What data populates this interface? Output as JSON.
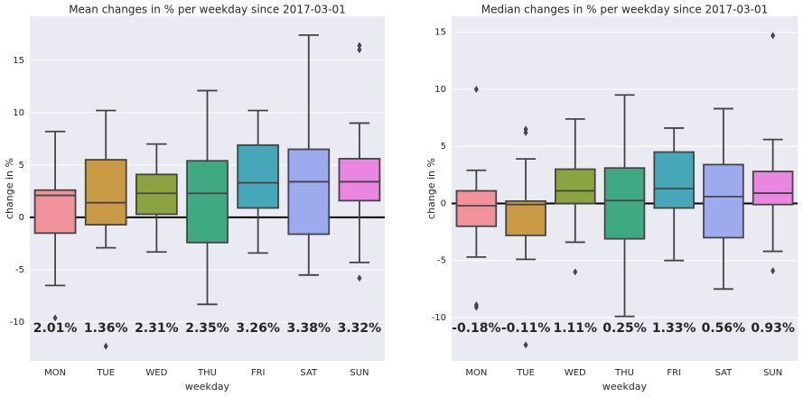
{
  "chart_data": [
    {
      "type": "box",
      "title": "Mean changes in % per weekday since 2017-03-01",
      "x_label": "weekday",
      "y_label": "change in %",
      "categories": [
        "MON",
        "TUE",
        "WED",
        "THU",
        "FRI",
        "SAT",
        "SUN"
      ],
      "colors": [
        "#f2929c",
        "#c99a44",
        "#8ba441",
        "#3faa81",
        "#45a7b8",
        "#9daaee",
        "#ea86e2"
      ],
      "whisker_low": [
        -6.5,
        -2.9,
        -3.3,
        -8.3,
        -3.4,
        -5.5,
        -4.3
      ],
      "q1": [
        -1.5,
        -0.7,
        0.3,
        -2.4,
        0.9,
        -1.6,
        1.6
      ],
      "median": [
        2.1,
        1.4,
        2.3,
        2.3,
        3.3,
        3.4,
        3.4
      ],
      "q3": [
        2.6,
        5.5,
        4.1,
        5.4,
        6.9,
        6.5,
        5.6
      ],
      "whisker_high": [
        8.2,
        10.2,
        7.0,
        12.1,
        10.2,
        17.4,
        9.0
      ],
      "outliers": [
        [
          -9.6
        ],
        [
          -12.3
        ],
        [],
        [],
        [],
        [],
        [
          16.4,
          16.0,
          -5.8
        ]
      ],
      "values": [
        2.01,
        1.36,
        2.31,
        2.35,
        3.26,
        3.38,
        3.32
      ],
      "value_labels": [
        "2.01%",
        "1.36%",
        "2.31%",
        "2.35%",
        "3.26%",
        "3.38%",
        "3.32%"
      ],
      "positive_label_color": "#5f7f12",
      "negative_label_color": "#8b0023",
      "reference_line": 0,
      "ylim": [
        -13.7,
        19.2
      ],
      "yticks": [
        -10,
        -5,
        0,
        5,
        10,
        15
      ],
      "grid": true
    },
    {
      "type": "box",
      "title": "Median changes in % per weekday since 2017-03-01",
      "x_label": "weekday",
      "y_label": "change in %",
      "categories": [
        "MON",
        "TUE",
        "WED",
        "THU",
        "FRI",
        "SAT",
        "SUN"
      ],
      "colors": [
        "#f2929c",
        "#c99a44",
        "#8ba441",
        "#3faa81",
        "#45a7b8",
        "#9daaee",
        "#ea86e2"
      ],
      "whisker_low": [
        -4.7,
        -4.9,
        -3.4,
        -9.9,
        -5.0,
        -7.5,
        -4.2
      ],
      "q1": [
        -2.0,
        -2.8,
        0.0,
        -3.1,
        -0.4,
        -3.0,
        -0.1
      ],
      "median": [
        -0.2,
        -0.1,
        1.1,
        0.25,
        1.3,
        0.6,
        0.9
      ],
      "q3": [
        1.1,
        0.2,
        3.0,
        3.1,
        4.5,
        3.4,
        2.8
      ],
      "whisker_high": [
        2.9,
        3.9,
        7.4,
        9.5,
        6.6,
        8.3,
        5.6
      ],
      "outliers": [
        [
          10.0,
          -8.9,
          -9.1
        ],
        [
          6.5,
          6.2,
          -12.4
        ],
        [
          -6.0
        ],
        [],
        [],
        [],
        [
          14.7,
          -5.9
        ]
      ],
      "values": [
        -0.18,
        -0.11,
        1.11,
        0.25,
        1.33,
        0.56,
        0.93
      ],
      "value_labels": [
        "-0.18%",
        "-0.11%",
        "1.11%",
        "0.25%",
        "1.33%",
        "0.56%",
        "0.93%"
      ],
      "positive_label_color": "#5f7f12",
      "negative_label_color": "#8b0023",
      "reference_line": 0,
      "ylim": [
        -13.8,
        16.4
      ],
      "yticks": [
        -10,
        -5,
        0,
        5,
        10,
        15
      ],
      "grid": true
    }
  ]
}
